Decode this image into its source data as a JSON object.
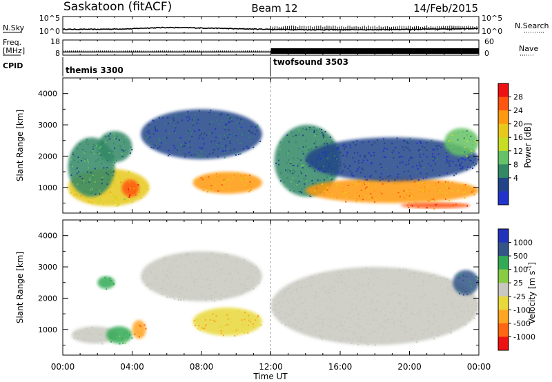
{
  "header": {
    "station": "Saskatoon (fitACF)",
    "beam": "Beam 12",
    "date": "14/Feb/2015"
  },
  "status_panels": {
    "nsky": {
      "label": "N.Sky",
      "ticks": [
        "10^5",
        "10^0"
      ],
      "right_label": "N.Search",
      "right_ticks": [
        "10^5",
        "10^0"
      ]
    },
    "freq": {
      "label_line1": "Freq.",
      "label_line2": "[MHz]",
      "ticks": [
        "18",
        "8"
      ],
      "right_label": "Nave",
      "right_ticks": [
        "60",
        "0"
      ]
    },
    "cpid": {
      "label": "CPID",
      "segments": [
        {
          "name": "themis 3300",
          "start_hour": 0
        },
        {
          "name": "twofsound 3503",
          "start_hour": 12
        }
      ]
    }
  },
  "x_axis": {
    "label": "Time UT",
    "ticks": [
      "00:00",
      "04:00",
      "08:00",
      "12:00",
      "16:00",
      "20:00",
      "00:00"
    ]
  },
  "power_panel": {
    "ylabel": "Slant Range [km]",
    "yticks": [
      "4000",
      "3000",
      "2000",
      "1000"
    ],
    "colorbar_label": "Power [dB]",
    "colorbar_ticks": [
      "28",
      "24",
      "20",
      "16",
      "12",
      "8",
      "4"
    ],
    "colors": [
      "#ee1111",
      "#ff5511",
      "#ff9911",
      "#e8c81a",
      "#c8dd22",
      "#66c266",
      "#338866",
      "#224488",
      "#2233cc"
    ]
  },
  "velocity_panel": {
    "ylabel": "Slant Range [km]",
    "yticks": [
      "4000",
      "3000",
      "2000",
      "1000"
    ],
    "colorbar_label": "Velocity [m s^-1]",
    "colorbar_ticks": [
      "1000",
      "500",
      "100",
      "25",
      "-25",
      "-100",
      "-500",
      "-1000"
    ],
    "colors": [
      "#2233bb",
      "#335588",
      "#33aa55",
      "#88cc44",
      "#c8c8c0",
      "#e8d83a",
      "#ffa522",
      "#ff6611",
      "#ee1111"
    ]
  },
  "chart_data": [
    {
      "type": "line",
      "title": "N.Sky",
      "x_range_hours": [
        0,
        24
      ],
      "series": [
        {
          "name": "N.Sky",
          "x": [
            0,
            2,
            4,
            6,
            8,
            10,
            12,
            14,
            16,
            18,
            20,
            22,
            24
          ],
          "y": [
            3,
            3,
            5,
            20,
            12,
            5,
            3,
            2,
            2,
            2,
            3,
            4,
            8
          ]
        }
      ]
    },
    {
      "type": "line",
      "title": "Freq.",
      "x_range_hours": [
        0,
        24
      ],
      "series": [
        {
          "name": "Freq.",
          "x": [
            0,
            12,
            12,
            24
          ],
          "y": [
            10.5,
            10.5,
            12,
            12
          ]
        }
      ]
    },
    {
      "type": "heatmap",
      "title": "Power [dB]",
      "xlim": [
        0,
        24
      ],
      "ylim": [
        180,
        4500
      ],
      "regions": [
        {
          "x": [
            0.3,
            5.0
          ],
          "y": [
            400,
            1600
          ],
          "value": 20
        },
        {
          "x": [
            0.3,
            3.0
          ],
          "y": [
            700,
            2600
          ],
          "value": 10
        },
        {
          "x": [
            2.0,
            4.0
          ],
          "y": [
            1800,
            2800
          ],
          "value": 12
        },
        {
          "x": [
            3.4,
            4.4
          ],
          "y": [
            700,
            1250
          ],
          "value": 28
        },
        {
          "x": [
            4.5,
            11.5
          ],
          "y": [
            1900,
            3500
          ],
          "value": 8
        },
        {
          "x": [
            7.5,
            11.5
          ],
          "y": [
            800,
            1500
          ],
          "value": 24
        },
        {
          "x": [
            12.2,
            16.0
          ],
          "y": [
            700,
            3000
          ],
          "value": 10
        },
        {
          "x": [
            14.0,
            24.0
          ],
          "y": [
            500,
            1300
          ],
          "value": 24
        },
        {
          "x": [
            14.0,
            24.0
          ],
          "y": [
            1200,
            2600
          ],
          "value": 6
        },
        {
          "x": [
            19.5,
            23.5
          ],
          "y": [
            330,
            520
          ],
          "value": 28
        },
        {
          "x": [
            22.0,
            24.0
          ],
          "y": [
            2000,
            2900
          ],
          "value": 16
        }
      ]
    },
    {
      "type": "heatmap",
      "title": "Velocity [m s^-1]",
      "xlim": [
        0,
        24
      ],
      "ylim": [
        180,
        4500
      ],
      "regions": [
        {
          "x": [
            0.5,
            3.2
          ],
          "y": [
            550,
            1100
          ],
          "value": 0
        },
        {
          "x": [
            2.0,
            3.0
          ],
          "y": [
            2300,
            2700
          ],
          "value": 100
        },
        {
          "x": [
            2.5,
            4.0
          ],
          "y": [
            550,
            1100
          ],
          "value": 100
        },
        {
          "x": [
            4.0,
            4.8
          ],
          "y": [
            700,
            1300
          ],
          "value": -500
        },
        {
          "x": [
            4.5,
            11.5
          ],
          "y": [
            1900,
            3500
          ],
          "value": 0
        },
        {
          "x": [
            7.5,
            11.5
          ],
          "y": [
            800,
            1700
          ],
          "value": -100
        },
        {
          "x": [
            12.0,
            24.0
          ],
          "y": [
            500,
            3000
          ],
          "value": 0
        },
        {
          "x": [
            22.5,
            24.0
          ],
          "y": [
            2100,
            2900
          ],
          "value": 500
        }
      ]
    }
  ]
}
